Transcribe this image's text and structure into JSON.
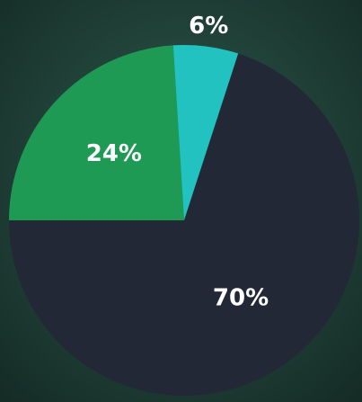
{
  "chart_data": {
    "type": "pie",
    "values": [
      24,
      6,
      70
    ],
    "value_labels": [
      "24%",
      "6%",
      "70%"
    ],
    "colors": [
      "#1e9a55",
      "#22c2c0",
      "#232836"
    ]
  }
}
